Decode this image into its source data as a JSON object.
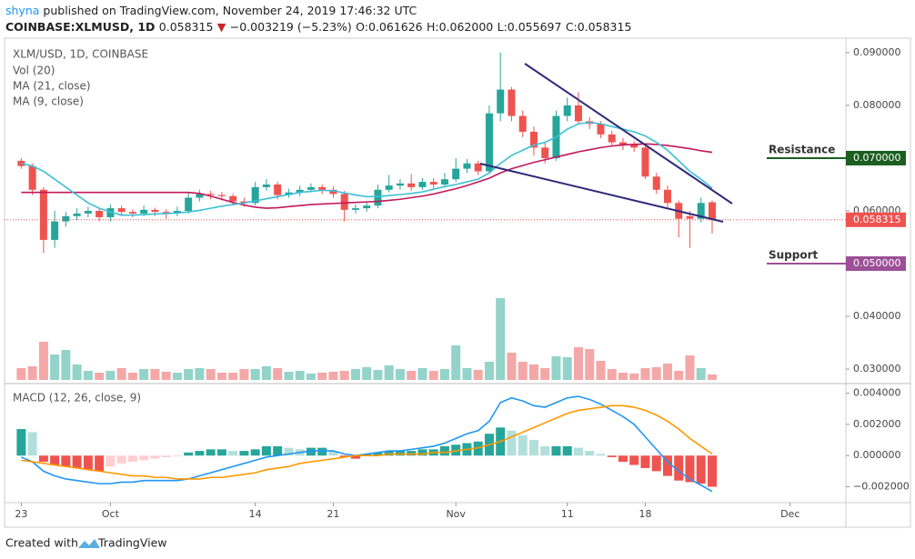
{
  "header": {
    "author": "shyna",
    "published": "published on TradingView.com, November 24, 2019 17:46:32 UTC",
    "symbol": "COINBASE:XLMUSD, 1D",
    "last": "0.058315",
    "arrow": "▼",
    "change": "−0.003219 (−5.23%)",
    "open": "O:0.061626",
    "high": "H:0.062000",
    "low": "L:0.055697",
    "close": "C:0.058315"
  },
  "footer": {
    "created": "Created with",
    "brand": "TradingView"
  },
  "chart_data": {
    "type": "candlestick",
    "legend": [
      "XLM/USD, 1D, COINBASE",
      "Vol (20)",
      "MA (21, close)",
      "MA (9, close)"
    ],
    "colors": {
      "up": "#26a69a",
      "down": "#ef5350",
      "vol_up": "#93d3c9",
      "vol_down": "#f4a7a7",
      "ma21": "#c2185b",
      "ma9": "#3cc0d6"
    },
    "xlim": [
      -1.5,
      74
    ],
    "xticks": [
      {
        "value": 0,
        "label": "23"
      },
      {
        "value": 8,
        "label": "Oct"
      },
      {
        "value": 21,
        "label": "14"
      },
      {
        "value": 28,
        "label": "21"
      },
      {
        "value": 39,
        "label": "Nov"
      },
      {
        "value": 49,
        "label": "11"
      },
      {
        "value": 56,
        "label": "18"
      },
      {
        "value": 69,
        "label": "Dec"
      }
    ],
    "ylim": [
      0.0276,
      0.0924
    ],
    "yticks": [
      {
        "value": 0.03,
        "label": "0.030000"
      },
      {
        "value": 0.04,
        "label": "0.040000"
      },
      {
        "value": 0.05,
        "label": "0.050000"
      },
      {
        "value": 0.06,
        "label": "0.060000"
      },
      {
        "value": 0.07,
        "label": "0.070000"
      },
      {
        "value": 0.08,
        "label": "0.080000"
      },
      {
        "value": 0.09,
        "label": "0.090000"
      }
    ],
    "grid": false,
    "ohlc": [
      [
        0.0695,
        0.07,
        0.068,
        0.0685
      ],
      [
        0.0685,
        0.069,
        0.063,
        0.064
      ],
      [
        0.064,
        0.0645,
        0.052,
        0.0545
      ],
      [
        0.0545,
        0.06,
        0.053,
        0.058
      ],
      [
        0.058,
        0.0598,
        0.057,
        0.059
      ],
      [
        0.059,
        0.0605,
        0.0582,
        0.0595
      ],
      [
        0.0595,
        0.0608,
        0.0588,
        0.06
      ],
      [
        0.06,
        0.0605,
        0.058,
        0.0588
      ],
      [
        0.0588,
        0.0612,
        0.058,
        0.0605
      ],
      [
        0.0605,
        0.061,
        0.059,
        0.0598
      ],
      [
        0.0598,
        0.0603,
        0.0588,
        0.0595
      ],
      [
        0.0595,
        0.061,
        0.059,
        0.0602
      ],
      [
        0.0602,
        0.0606,
        0.059,
        0.0598
      ],
      [
        0.0598,
        0.0603,
        0.0585,
        0.0596
      ],
      [
        0.0596,
        0.0608,
        0.059,
        0.06
      ],
      [
        0.06,
        0.0635,
        0.0595,
        0.0625
      ],
      [
        0.0625,
        0.064,
        0.0618,
        0.0632
      ],
      [
        0.0632,
        0.0638,
        0.0622,
        0.063
      ],
      [
        0.063,
        0.0636,
        0.062,
        0.0628
      ],
      [
        0.0628,
        0.0632,
        0.061,
        0.0618
      ],
      [
        0.0618,
        0.0625,
        0.0608,
        0.0615
      ],
      [
        0.0615,
        0.0655,
        0.061,
        0.0645
      ],
      [
        0.0645,
        0.066,
        0.0638,
        0.065
      ],
      [
        0.065,
        0.0655,
        0.0622,
        0.063
      ],
      [
        0.063,
        0.0642,
        0.0625,
        0.0635
      ],
      [
        0.0635,
        0.0648,
        0.0628,
        0.064
      ],
      [
        0.064,
        0.0652,
        0.0635,
        0.0645
      ],
      [
        0.0645,
        0.065,
        0.0632,
        0.064
      ],
      [
        0.064,
        0.0646,
        0.0625,
        0.0632
      ],
      [
        0.0632,
        0.0638,
        0.058,
        0.0602
      ],
      [
        0.0602,
        0.0612,
        0.0595,
        0.0605
      ],
      [
        0.0605,
        0.0618,
        0.0598,
        0.061
      ],
      [
        0.061,
        0.065,
        0.0605,
        0.064
      ],
      [
        0.064,
        0.0668,
        0.0635,
        0.0648
      ],
      [
        0.0648,
        0.066,
        0.064,
        0.0652
      ],
      [
        0.0652,
        0.067,
        0.0638,
        0.0645
      ],
      [
        0.0645,
        0.0662,
        0.064,
        0.0655
      ],
      [
        0.0655,
        0.0662,
        0.0642,
        0.065
      ],
      [
        0.065,
        0.0672,
        0.0645,
        0.066
      ],
      [
        0.066,
        0.07,
        0.0655,
        0.068
      ],
      [
        0.068,
        0.0698,
        0.0672,
        0.069
      ],
      [
        0.069,
        0.0695,
        0.0668,
        0.0675
      ],
      [
        0.0675,
        0.08,
        0.067,
        0.0785
      ],
      [
        0.0785,
        0.09,
        0.077,
        0.083
      ],
      [
        0.083,
        0.0835,
        0.077,
        0.078
      ],
      [
        0.078,
        0.079,
        0.074,
        0.075
      ],
      [
        0.075,
        0.076,
        0.0705,
        0.072
      ],
      [
        0.072,
        0.073,
        0.069,
        0.07
      ],
      [
        0.07,
        0.079,
        0.0695,
        0.078
      ],
      [
        0.078,
        0.0815,
        0.077,
        0.08
      ],
      [
        0.08,
        0.0825,
        0.0765,
        0.077
      ],
      [
        0.077,
        0.0778,
        0.0755,
        0.0765
      ],
      [
        0.0765,
        0.077,
        0.0738,
        0.0745
      ],
      [
        0.0745,
        0.0752,
        0.0722,
        0.073
      ],
      [
        0.073,
        0.0738,
        0.0715,
        0.0725
      ],
      [
        0.0725,
        0.0732,
        0.0712,
        0.072
      ],
      [
        0.072,
        0.0728,
        0.066,
        0.0665
      ],
      [
        0.0665,
        0.0672,
        0.0632,
        0.064
      ],
      [
        0.064,
        0.0648,
        0.0605,
        0.0615
      ],
      [
        0.0615,
        0.062,
        0.055,
        0.0585
      ],
      [
        0.059,
        0.06,
        0.053,
        0.0585
      ],
      [
        0.0585,
        0.0625,
        0.0578,
        0.0615
      ],
      [
        0.061626,
        0.062,
        0.055697,
        0.058315
      ]
    ],
    "volume": [
      13,
      15,
      42,
      28,
      33,
      17,
      10,
      8,
      10,
      13,
      8,
      12,
      12,
      9,
      8,
      12,
      13,
      12,
      8,
      8,
      12,
      12,
      15,
      13,
      9,
      10,
      7,
      8,
      9,
      10,
      12,
      14,
      11,
      16,
      12,
      10,
      13,
      10,
      12,
      38,
      13,
      11,
      20,
      90,
      30,
      20,
      17,
      13,
      26,
      25,
      36,
      34,
      21,
      12,
      8,
      7,
      13,
      14,
      18,
      10,
      27,
      13,
      6
    ],
    "ma21": [
      0.0635,
      0.0635,
      0.0635,
      0.0635,
      0.0635,
      0.0635,
      0.0635,
      0.0635,
      0.0635,
      0.0635,
      0.0635,
      0.0635,
      0.0635,
      0.0635,
      0.0635,
      0.0635,
      0.0633,
      0.0628,
      0.0622,
      0.0616,
      0.0611,
      0.0607,
      0.0605,
      0.0606,
      0.0608,
      0.061,
      0.0612,
      0.0613,
      0.0614,
      0.0615,
      0.0616,
      0.0617,
      0.0618,
      0.062,
      0.0622,
      0.0625,
      0.0628,
      0.0632,
      0.0637,
      0.0642,
      0.0648,
      0.0655,
      0.0662,
      0.0672,
      0.068,
      0.0686,
      0.0692,
      0.0697,
      0.0702,
      0.0707,
      0.0712,
      0.0716,
      0.072,
      0.0723,
      0.0725,
      0.0726,
      0.0727,
      0.0726,
      0.0724,
      0.0721,
      0.0718,
      0.0714,
      0.0711
    ],
    "ma9": [
      0.069,
      0.0685,
      0.0675,
      0.066,
      0.0645,
      0.063,
      0.0615,
      0.0605,
      0.0598,
      0.0592,
      0.0592,
      0.0593,
      0.0594,
      0.0595,
      0.0596,
      0.0598,
      0.0601,
      0.0605,
      0.0609,
      0.0612,
      0.0615,
      0.0619,
      0.0623,
      0.0627,
      0.0631,
      0.0635,
      0.0637,
      0.0639,
      0.0638,
      0.0634,
      0.063,
      0.0627,
      0.0627,
      0.0629,
      0.0631,
      0.0633,
      0.0636,
      0.0641,
      0.0646,
      0.065,
      0.0655,
      0.066,
      0.0672,
      0.069,
      0.0705,
      0.0715,
      0.0725,
      0.073,
      0.074,
      0.0755,
      0.0765,
      0.0768,
      0.0765,
      0.076,
      0.0755,
      0.075,
      0.0742,
      0.073,
      0.0715,
      0.0695,
      0.0675,
      0.066,
      0.0643
    ],
    "last_price": {
      "value": 0.058315,
      "label": "0.058315",
      "color": "#ef5350"
    },
    "resistance": {
      "name": "Resistance",
      "value": 0.07,
      "label": "0.070000",
      "color": "#1b5e20",
      "text_color": "#c2185b"
    },
    "support": {
      "name": "Support",
      "value": 0.05,
      "label": "0.050000",
      "color": "#9c4f96",
      "text_color": "#d35400"
    },
    "macd": {
      "title": "MACD (12, 26, close, 9)",
      "ylim": [
        -0.0029,
        0.0045
      ],
      "yticks": [
        {
          "value": 0.004,
          "label": "0.004000"
        },
        {
          "value": 0.002,
          "label": "0.002000"
        },
        {
          "value": 0,
          "label": "0.000000"
        },
        {
          "value": -0.002,
          "label": "−0.002000"
        }
      ],
      "colors": {
        "macd": "#2196f3",
        "signal": "#ff9800",
        "up_strong": "#26a69a",
        "up_weak": "#b2dfdb",
        "down_strong": "#ef5350",
        "down_weak": "#ffcdd2"
      },
      "histogram": [
        0.0017,
        0.0015,
        -0.0004,
        -0.0006,
        -0.0007,
        -0.0008,
        -0.0009,
        -0.001,
        -0.0007,
        -0.0005,
        -0.0004,
        -0.0003,
        -0.0002,
        -0.0001,
        -5e-05,
        0.0002,
        0.0003,
        0.0004,
        0.0004,
        0.0003,
        0.0003,
        0.0004,
        0.0006,
        0.0006,
        0.0005,
        0.0004,
        0.0005,
        0.0005,
        0.0003,
        -0.0001,
        -0.0002,
        0.0001,
        0.0002,
        0.0003,
        0.0003,
        0.0003,
        0.0004,
        0.0004,
        0.0006,
        0.0007,
        0.0008,
        0.0009,
        0.0014,
        0.0018,
        0.0016,
        0.0013,
        0.001,
        0.0006,
        0.0006,
        0.0006,
        0.0005,
        0.0003,
        0.0001,
        -0.0001,
        -0.0004,
        -0.0006,
        -0.0008,
        -0.001,
        -0.0013,
        -0.0016,
        -0.0017,
        -0.0018,
        -0.002
      ],
      "macd": [
        -0.0001,
        -0.0004,
        -0.001,
        -0.0013,
        -0.0015,
        -0.0016,
        -0.0017,
        -0.0018,
        -0.0018,
        -0.0017,
        -0.0017,
        -0.0016,
        -0.0016,
        -0.0016,
        -0.0016,
        -0.0015,
        -0.0013,
        -0.0011,
        -0.0009,
        -0.0007,
        -0.0005,
        -0.0003,
        -0.0001,
        0,
        0.0001,
        0.0002,
        0.0003,
        0.0003,
        0.0003,
        0.0001,
        0,
        0.0001,
        0.0002,
        0.0003,
        0.0003,
        0.0004,
        0.0005,
        0.0006,
        0.0008,
        0.0011,
        0.0014,
        0.0016,
        0.0022,
        0.0034,
        0.0037,
        0.0035,
        0.0032,
        0.0031,
        0.0034,
        0.0037,
        0.0038,
        0.0036,
        0.0033,
        0.0029,
        0.0025,
        0.002,
        0.0012,
        0.0004,
        -0.0004,
        -0.001,
        -0.0015,
        -0.0019,
        -0.0023
      ],
      "signal": [
        -0.0003,
        -0.0004,
        -0.0005,
        -0.0006,
        -0.0007,
        -0.0008,
        -0.0009,
        -0.001,
        -0.0011,
        -0.0012,
        -0.0013,
        -0.0013,
        -0.0014,
        -0.0014,
        -0.0015,
        -0.0015,
        -0.0015,
        -0.0014,
        -0.0014,
        -0.0013,
        -0.0012,
        -0.0011,
        -0.0009,
        -0.0008,
        -0.0007,
        -0.0005,
        -0.0004,
        -0.0003,
        -0.0002,
        -0.0001,
        0,
        0,
        0,
        0.0001,
        0.0001,
        0.0001,
        0.0001,
        0.0002,
        0.0002,
        0.0003,
        0.0004,
        0.0005,
        0.0007,
        0.0009,
        0.0012,
        0.0015,
        0.0018,
        0.0021,
        0.0024,
        0.0027,
        0.0029,
        0.003,
        0.0031,
        0.0032,
        0.0032,
        0.0031,
        0.0029,
        0.0026,
        0.0022,
        0.0017,
        0.0011,
        0.0006,
        0.0001
      ]
    }
  }
}
